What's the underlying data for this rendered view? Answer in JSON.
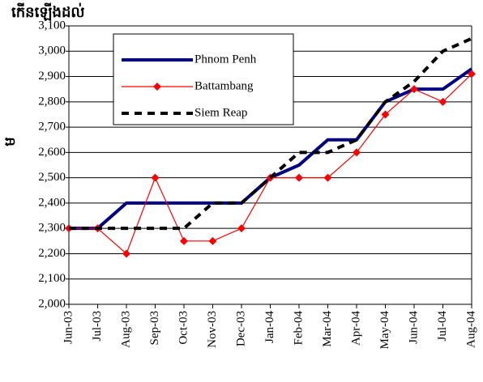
{
  "chart_data": {
    "type": "line",
    "title": "កើនឡើងដល់",
    "y_label": "ម",
    "categories": [
      "Jun-03",
      "Jul-03",
      "Aug-03",
      "Sep-03",
      "Oct-03",
      "Nov-03",
      "Dec-03",
      "Jan-04",
      "Feb-04",
      "Mar-04",
      "Apr-04",
      "May-04",
      "Jun-04",
      "Jul-04",
      "Aug-04"
    ],
    "series": [
      {
        "name": "Phnom Penh",
        "color": "#000080",
        "style": "solid",
        "values": [
          2300,
          2300,
          2400,
          2400,
          2400,
          2400,
          2400,
          2500,
          2550,
          2650,
          2650,
          2800,
          2850,
          2850,
          2930
        ]
      },
      {
        "name": "Battambang",
        "color": "#ff0000",
        "style": "diamond",
        "values": [
          2300,
          2300,
          2200,
          2500,
          2250,
          2250,
          2300,
          2500,
          2500,
          2500,
          2600,
          2750,
          2850,
          2800,
          2910
        ]
      },
      {
        "name": "Siem Reap",
        "color": "#000000",
        "style": "dashed",
        "values": [
          2300,
          2300,
          2300,
          2300,
          2300,
          2400,
          2400,
          2500,
          2600,
          2600,
          2650,
          2800,
          2880,
          3000,
          3050
        ]
      }
    ],
    "ylim": [
      2000,
      3100
    ],
    "yticks": [
      {
        "value": 2000,
        "label": "2,000"
      },
      {
        "value": 2100,
        "label": "2,100"
      },
      {
        "value": 2200,
        "label": "2,200"
      },
      {
        "value": 2300,
        "label": "2,300"
      },
      {
        "value": 2400,
        "label": "2,400"
      },
      {
        "value": 2500,
        "label": "2,500"
      },
      {
        "value": 2600,
        "label": "2,600"
      },
      {
        "value": 2700,
        "label": "2,700"
      },
      {
        "value": 2800,
        "label": "2,800"
      },
      {
        "value": 2900,
        "label": "2,900"
      },
      {
        "value": 3000,
        "label": "3,000"
      },
      {
        "value": 3100,
        "label": "3,100"
      }
    ],
    "grid": true
  }
}
